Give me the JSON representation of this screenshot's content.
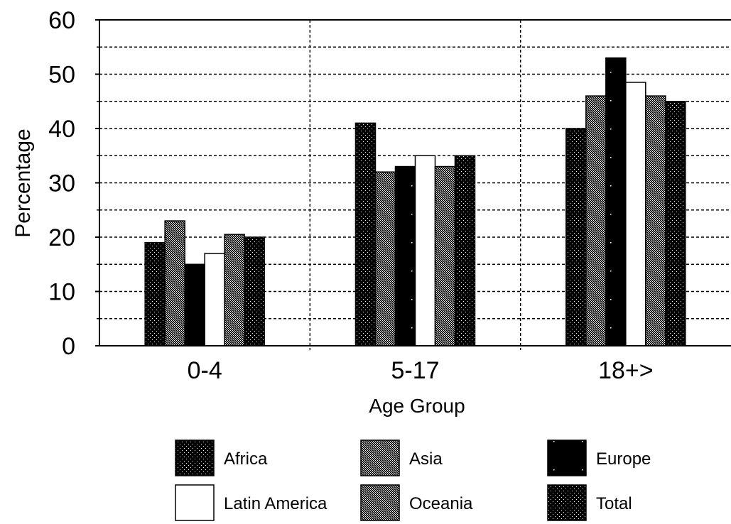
{
  "chart_data": {
    "type": "bar",
    "title": "",
    "xlabel": "Age Group",
    "ylabel": "Percentage",
    "categories": [
      "0-4",
      "5-17",
      "18+>"
    ],
    "ylim": [
      0,
      60
    ],
    "yticks": [
      "0",
      "10",
      "20",
      "30",
      "40",
      "50",
      "60"
    ],
    "grid": true,
    "legend_position": "bottom",
    "series": [
      {
        "name": "Africa",
        "values": [
          19,
          41,
          40
        ],
        "pattern": "dots-dark",
        "color": "#000000"
      },
      {
        "name": "Asia",
        "values": [
          23,
          32,
          46
        ],
        "pattern": "hatch-grey",
        "color": "#808080"
      },
      {
        "name": "Europe",
        "values": [
          15,
          33,
          53
        ],
        "pattern": "solid-black",
        "color": "#000000"
      },
      {
        "name": "Latin America",
        "values": [
          17,
          35,
          48.5
        ],
        "pattern": "white",
        "color": "#ffffff"
      },
      {
        "name": "Oceania",
        "values": [
          20.5,
          33,
          46
        ],
        "pattern": "hatch-grey",
        "color": "#808080"
      },
      {
        "name": "Total",
        "values": [
          20,
          35,
          45
        ],
        "pattern": "dots-dark",
        "color": "#000000"
      }
    ]
  }
}
